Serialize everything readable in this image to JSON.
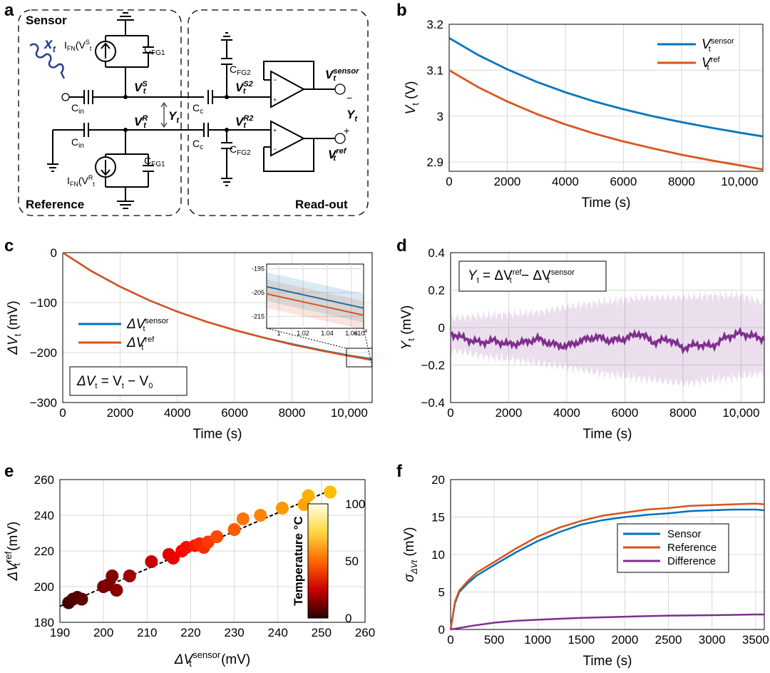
{
  "panels": {
    "a": "a",
    "b": "b",
    "c": "c",
    "d": "d",
    "e": "e",
    "f": "f"
  },
  "circuit": {
    "sensor": "Sensor",
    "reference": "Reference",
    "readout": "Read-out",
    "input": "x",
    "input_sub": "t",
    "cin": "C",
    "cin_sub": "in",
    "cfg1": "C",
    "cfg1_sub": "FG1",
    "cfg2": "C",
    "cfg2_sub": "FG2",
    "cc": "C",
    "cc_sub": "c",
    "ifn": "I",
    "ifn_sub": "FN",
    "ifn_arg_s": "(V",
    "ifn_arg_s_sup": "S",
    "ifn_arg_s_sub": "t",
    "ifn_arg_r": "(V",
    "ifn_arg_r_sup": "R",
    "ifn_arg_r_sub": "t",
    "vs": "V",
    "vs_sup": "S",
    "vs_sub": "t",
    "vr": "V",
    "vr_sup": "R",
    "vr_sub": "t",
    "vs2": "V",
    "vs2_sup": "S2",
    "vs2_sub": "t",
    "vr2": "V",
    "vr2_sup": "R2",
    "vr2_sub": "t",
    "yhat": "Y",
    "yhat_sub": "t",
    "vsensor": "V",
    "vsensor_sup": "sensor",
    "vsensor_sub": "t",
    "vref": "V",
    "vref_sup": "ref",
    "vref_sub": "t",
    "yt": "Y",
    "yt_sub": "t",
    "minus": "−",
    "plus": "+"
  },
  "chart_data": [
    {
      "panel": "b",
      "type": "line",
      "xlabel": "Time (s)",
      "ylabel": "V",
      "ylabel_sub": "t",
      "ylabel_unit": " (V)",
      "xlim": [
        0,
        10800
      ],
      "ylim": [
        2.88,
        3.2
      ],
      "xticks": [
        0,
        2000,
        4000,
        6000,
        8000,
        10000
      ],
      "xtick_labels": [
        "0",
        "2000",
        "4000",
        "6000",
        "8000",
        "10,000"
      ],
      "yticks": [
        2.9,
        3.0,
        3.1,
        3.2
      ],
      "ytick_labels": [
        "2.9",
        "3",
        "3.1",
        "3.2"
      ],
      "legend_position": "top-right",
      "series": [
        {
          "name": "V",
          "name_sup": "sensor",
          "name_sub": "t",
          "color": "#0072bd",
          "x": [
            0,
            1000,
            2000,
            3000,
            4000,
            5000,
            6000,
            7000,
            8000,
            9000,
            10000,
            10800
          ],
          "y": [
            3.17,
            3.133,
            3.102,
            3.075,
            3.052,
            3.032,
            3.015,
            3.0,
            2.987,
            2.975,
            2.964,
            2.956
          ]
        },
        {
          "name": "V",
          "name_sup": "ref",
          "name_sub": "t",
          "color": "#d95319",
          "x": [
            0,
            1000,
            2000,
            3000,
            4000,
            5000,
            6000,
            7000,
            8000,
            9000,
            10000,
            10800
          ],
          "y": [
            3.1,
            3.063,
            3.032,
            3.005,
            2.982,
            2.962,
            2.945,
            2.93,
            2.916,
            2.904,
            2.893,
            2.884
          ]
        }
      ]
    },
    {
      "panel": "c",
      "type": "line",
      "xlabel": "Time (s)",
      "ylabel": "ΔV",
      "ylabel_sub": "t",
      "ylabel_unit": " (mV)",
      "xlim": [
        0,
        10800
      ],
      "ylim": [
        -300,
        0
      ],
      "xticks": [
        0,
        2000,
        4000,
        6000,
        8000,
        10000
      ],
      "xtick_labels": [
        "0",
        "2000",
        "4000",
        "6000",
        "8000",
        "10,000"
      ],
      "yticks": [
        0,
        -100,
        -200,
        -300
      ],
      "ytick_labels": [
        "0",
        "−100",
        "−200",
        "−300"
      ],
      "legend_position": "middle-left",
      "equation": "ΔV",
      "equation_rest": " = V",
      "equation_rest2": " −  V",
      "equation_sub1": "t",
      "equation_sub2": "t",
      "equation_sub3": "0",
      "series": [
        {
          "name": "ΔV",
          "name_sup": "sensor",
          "name_sub": "t",
          "color": "#0072bd",
          "x": [
            0,
            1000,
            2000,
            3000,
            4000,
            5000,
            6000,
            7000,
            8000,
            9000,
            10000,
            10800
          ],
          "y": [
            0,
            -37,
            -68,
            -95,
            -118,
            -138,
            -155,
            -170,
            -183,
            -195,
            -206,
            -213
          ]
        },
        {
          "name": "ΔV",
          "name_sup": "ref",
          "name_sub": "t",
          "color": "#d95319",
          "x": [
            0,
            1000,
            2000,
            3000,
            4000,
            5000,
            6000,
            7000,
            8000,
            9000,
            10000,
            10800
          ],
          "y": [
            0,
            -37,
            -68,
            -95,
            -118,
            -138,
            -155,
            -170,
            -184,
            -196,
            -207,
            -215
          ]
        }
      ],
      "inset": {
        "xlim": [
          9900,
          10700
        ],
        "ylim": [
          -220,
          -193
        ],
        "xtick_labels": [
          "1",
          "1.02",
          "1.04",
          "1.06"
        ],
        "xticks": [
          10000,
          10200,
          10400,
          10600
        ],
        "xscale_label": "×10",
        "xscale_exp": "4",
        "yticks": [
          -195,
          -205,
          -215
        ],
        "ytick_labels": [
          "-195",
          "-205",
          "-215"
        ],
        "series": [
          {
            "name": "sensor",
            "color": "#0072bd",
            "x": [
              9900,
              10700
            ],
            "y": [
              -202.5,
              -211.5
            ]
          },
          {
            "name": "ref",
            "color": "#d95319",
            "x": [
              9900,
              10700
            ],
            "y": [
              -205.5,
              -214.5
            ]
          }
        ]
      }
    },
    {
      "panel": "d",
      "type": "line",
      "xlabel": "Time (s)",
      "ylabel": "Y",
      "ylabel_sub": "t",
      "ylabel_unit": " (mV)",
      "xlim": [
        0,
        10800
      ],
      "ylim": [
        -0.4,
        0.4
      ],
      "xticks": [
        0,
        2000,
        4000,
        6000,
        8000,
        10000
      ],
      "xtick_labels": [
        "0",
        "2000",
        "4000",
        "6000",
        "8000",
        "10,000"
      ],
      "yticks": [
        0.4,
        0.2,
        0,
        -0.2,
        -0.4
      ],
      "ytick_labels": [
        "0.4",
        "0.2",
        "0",
        "−0.2",
        "−0.4"
      ],
      "equation": "Y",
      "equation_sub": "t",
      "equation_mid": " = ΔV",
      "equation_sup1": "ref",
      "equation_sub1": "t",
      "equation_end": " − ΔV",
      "equation_sup2": "sensor",
      "equation_sub2": "t",
      "series": [
        {
          "name": "mean",
          "color": "#7e2f8e",
          "x": [
            0,
            500,
            1000,
            1500,
            2000,
            2500,
            3000,
            3500,
            4000,
            4500,
            5000,
            5500,
            6000,
            6500,
            7000,
            7500,
            8000,
            8500,
            9000,
            9500,
            10000,
            10500,
            10800
          ],
          "y": [
            -0.03,
            -0.06,
            -0.08,
            -0.07,
            -0.09,
            -0.08,
            -0.06,
            -0.09,
            -0.1,
            -0.07,
            -0.05,
            -0.07,
            -0.06,
            -0.03,
            -0.08,
            -0.06,
            -0.11,
            -0.09,
            -0.1,
            -0.05,
            -0.03,
            -0.05,
            -0.06
          ]
        },
        {
          "name": "band_upper",
          "color": "#c9a9d6",
          "x": [
            0,
            1000,
            2000,
            3000,
            4000,
            5000,
            6000,
            7000,
            8000,
            9000,
            10000,
            10800
          ],
          "y": [
            0.05,
            0.06,
            0.07,
            0.08,
            0.11,
            0.13,
            0.15,
            0.16,
            0.16,
            0.17,
            0.17,
            0.13
          ]
        },
        {
          "name": "band_lower",
          "color": "#c9a9d6",
          "x": [
            0,
            1000,
            2000,
            3000,
            4000,
            5000,
            6000,
            7000,
            8000,
            9000,
            10000,
            10800
          ],
          "y": [
            -0.12,
            -0.15,
            -0.17,
            -0.19,
            -0.21,
            -0.24,
            -0.26,
            -0.28,
            -0.3,
            -0.28,
            -0.26,
            -0.24
          ]
        }
      ]
    },
    {
      "panel": "e",
      "type": "scatter",
      "xlabel": "ΔV",
      "xlabel_sup": "sensor",
      "xlabel_sub": "t",
      "xlabel_unit": " (mV)",
      "ylabel": "ΔV",
      "ylabel_sup": "ref",
      "ylabel_sub": "t",
      "ylabel_unit": " (mV)",
      "xlim": [
        190,
        260
      ],
      "ylim": [
        180,
        260
      ],
      "xticks": [
        190,
        200,
        210,
        220,
        230,
        240,
        250,
        260
      ],
      "xtick_labels": [
        "190",
        "200",
        "210",
        "220",
        "230",
        "240",
        "250",
        "260"
      ],
      "yticks": [
        180,
        200,
        220,
        240,
        260
      ],
      "ytick_labels": [
        "180",
        "200",
        "220",
        "240",
        "260"
      ],
      "colorbar": {
        "label": "Temperature °C",
        "ticks": [
          0,
          50,
          100
        ],
        "tick_labels": [
          "0",
          "50",
          "100"
        ]
      },
      "fit_line": {
        "x": [
          190,
          252
        ],
        "y": [
          189,
          254
        ]
      },
      "points": [
        {
          "x": 192,
          "y": 191,
          "t": 5
        },
        {
          "x": 193,
          "y": 193,
          "t": 6
        },
        {
          "x": 194,
          "y": 194,
          "t": 7
        },
        {
          "x": 195,
          "y": 193,
          "t": 8
        },
        {
          "x": 200,
          "y": 200,
          "t": 12
        },
        {
          "x": 201,
          "y": 201,
          "t": 13
        },
        {
          "x": 202,
          "y": 206,
          "t": 14
        },
        {
          "x": 203,
          "y": 198,
          "t": 15
        },
        {
          "x": 206,
          "y": 206,
          "t": 18
        },
        {
          "x": 211,
          "y": 214,
          "t": 24
        },
        {
          "x": 215,
          "y": 218,
          "t": 28
        },
        {
          "x": 216,
          "y": 216,
          "t": 30
        },
        {
          "x": 218,
          "y": 220,
          "t": 33
        },
        {
          "x": 219,
          "y": 222,
          "t": 35
        },
        {
          "x": 221,
          "y": 223,
          "t": 37
        },
        {
          "x": 222,
          "y": 224,
          "t": 39
        },
        {
          "x": 223,
          "y": 222,
          "t": 40
        },
        {
          "x": 224,
          "y": 225,
          "t": 42
        },
        {
          "x": 226,
          "y": 228,
          "t": 45
        },
        {
          "x": 230,
          "y": 232,
          "t": 48
        },
        {
          "x": 232,
          "y": 238,
          "t": 52
        },
        {
          "x": 236,
          "y": 240,
          "t": 55
        },
        {
          "x": 241,
          "y": 244,
          "t": 58
        },
        {
          "x": 246,
          "y": 246,
          "t": 60
        },
        {
          "x": 247,
          "y": 251,
          "t": 62
        },
        {
          "x": 252,
          "y": 253,
          "t": 64
        }
      ]
    },
    {
      "panel": "f",
      "type": "line",
      "xlabel": "Time (s)",
      "ylabel": "σ",
      "ylabel_sub": "ΔVt",
      "ylabel_unit": " (mV)",
      "xlim": [
        0,
        3600
      ],
      "ylim": [
        0,
        20
      ],
      "xticks": [
        0,
        500,
        1000,
        1500,
        2000,
        2500,
        3000,
        3500
      ],
      "xtick_labels": [
        "0",
        "500",
        "1000",
        "1500",
        "2000",
        "2500",
        "3000",
        "3500"
      ],
      "yticks": [
        0,
        5,
        10,
        15,
        20
      ],
      "ytick_labels": [
        "0",
        "5",
        "10",
        "15",
        "20"
      ],
      "legend_position": "center-right",
      "series": [
        {
          "name": "Sensor",
          "color": "#0072bd",
          "x": [
            0,
            50,
            100,
            200,
            300,
            500,
            750,
            1000,
            1250,
            1500,
            1750,
            2000,
            2250,
            2500,
            2750,
            3000,
            3250,
            3500,
            3600
          ],
          "y": [
            0,
            3.5,
            5,
            6.2,
            7.2,
            8.6,
            10.3,
            11.8,
            13,
            14,
            14.6,
            15,
            15.3,
            15.5,
            15.8,
            15.9,
            16,
            16,
            15.9
          ]
        },
        {
          "name": "Reference",
          "color": "#d95319",
          "x": [
            0,
            50,
            100,
            200,
            300,
            500,
            750,
            1000,
            1250,
            1500,
            1750,
            2000,
            2250,
            2500,
            2750,
            3000,
            3250,
            3500,
            3600
          ],
          "y": [
            0,
            3.7,
            5.2,
            6.5,
            7.6,
            9.0,
            10.8,
            12.4,
            13.6,
            14.5,
            15.2,
            15.6,
            16,
            16.2,
            16.5,
            16.6,
            16.7,
            16.8,
            16.7
          ]
        },
        {
          "name": "Difference",
          "color": "#7e2f8e",
          "x": [
            0,
            250,
            500,
            750,
            1000,
            1500,
            2000,
            2500,
            3000,
            3500,
            3600
          ],
          "y": [
            0,
            0.5,
            0.9,
            1.15,
            1.3,
            1.55,
            1.7,
            1.85,
            1.9,
            2.0,
            2.0
          ]
        }
      ]
    }
  ]
}
